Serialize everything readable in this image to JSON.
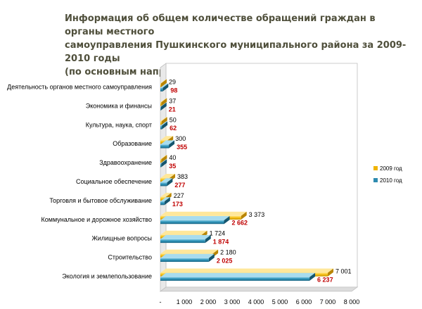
{
  "title": {
    "line1": "Информация об общем количестве обращений граждан в органы местного",
    "line2": "самоуправления Пушкинского муниципального  района за 2009-2010 годы",
    "line3": "(по основным направлениям)"
  },
  "colors": {
    "series_2009": "#f0b400",
    "series_2010": "#2e8bb0",
    "value_2010": "#c00000"
  },
  "chart_data": {
    "type": "bar",
    "orientation": "horizontal",
    "style": "3d",
    "categories": [
      "Деятельность органов местного самоуправления",
      "Экономика и финансы",
      "Культура, наука, спорт",
      "Образование",
      "Здравоохранение",
      "Социальное обеспечение",
      "Торговля и бытовое обслуживание",
      "Коммунальное и дорожное хозяйство",
      "Жилищные вопросы",
      "Строительство",
      "Экология и землепользование"
    ],
    "series": [
      {
        "name": "2009 год",
        "values": [
          29,
          37,
          50,
          300,
          40,
          383,
          227,
          3373,
          1724,
          2180,
          7001
        ],
        "labels": [
          "29",
          "37",
          "50",
          "300",
          "40",
          "383",
          "227",
          "3 373",
          "1 724",
          "2 180",
          "7 001"
        ]
      },
      {
        "name": "2010 год",
        "values": [
          98,
          21,
          62,
          355,
          35,
          277,
          173,
          2662,
          1874,
          2025,
          6237
        ],
        "labels": [
          "98",
          "21",
          "62",
          "355",
          "35",
          "277",
          "173",
          "2 662",
          "1 874",
          "2 025",
          "6 237"
        ]
      }
    ],
    "xlim": [
      0,
      8000
    ],
    "x_ticks": [
      "-",
      "1 000",
      "2 000",
      "3 000",
      "4 000",
      "5 000",
      "6 000",
      "7 000",
      "8 000"
    ],
    "grid": false,
    "legend_position": "right"
  }
}
